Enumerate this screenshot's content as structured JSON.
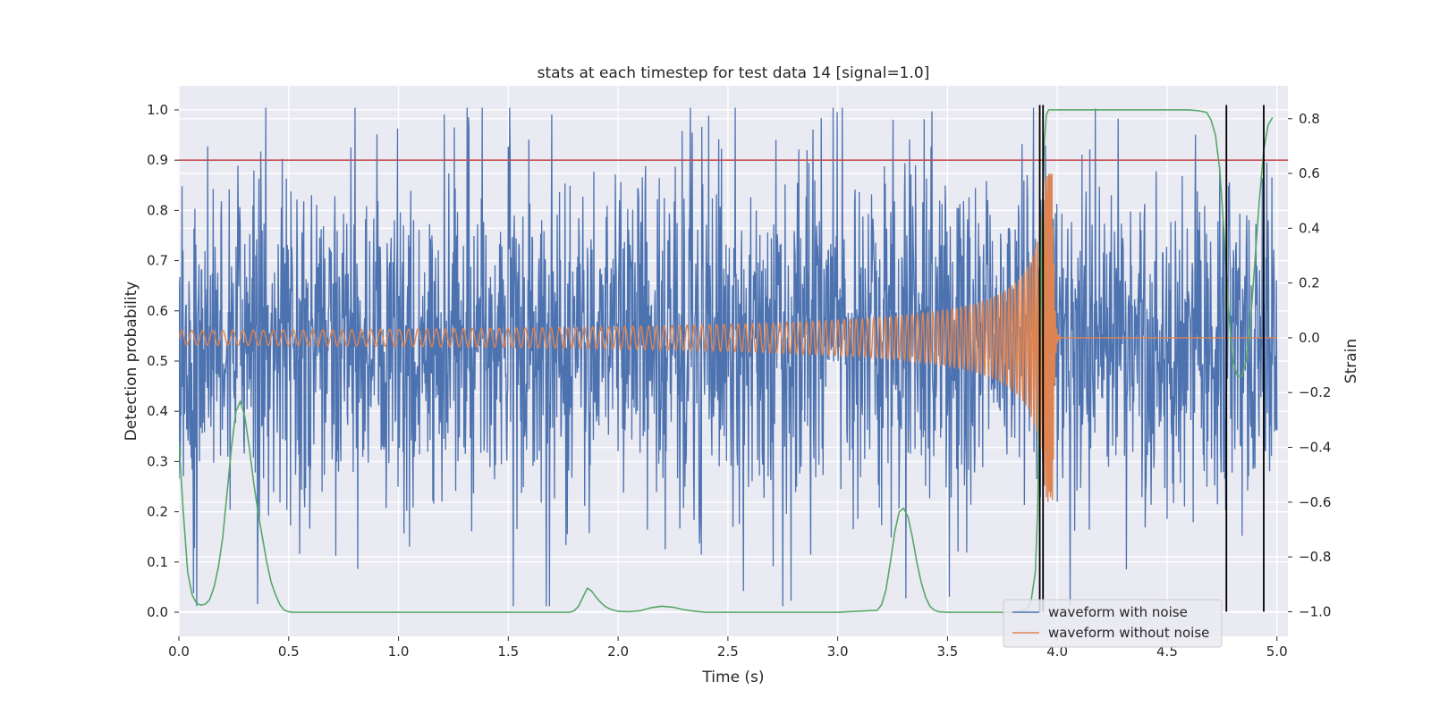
{
  "chart_data": {
    "type": "line",
    "title": "stats at each timestep for test data 14 [signal=1.0]",
    "xlabel": "Time (s)",
    "ylabel": "Detection probability",
    "y2label": "Strain",
    "xlim": [
      0.0,
      5.05
    ],
    "ylim": [
      -0.048,
      1.048
    ],
    "y2lim": [
      -1.09,
      0.92
    ],
    "x_ticks": [
      0.0,
      0.5,
      1.0,
      1.5,
      2.0,
      2.5,
      3.0,
      3.5,
      4.0,
      4.5,
      5.0
    ],
    "x_tick_labels": [
      "0.0",
      "0.5",
      "1.0",
      "1.5",
      "2.0",
      "2.5",
      "3.0",
      "3.5",
      "4.0",
      "4.5",
      "5.0"
    ],
    "y_ticks": [
      0.0,
      0.1,
      0.2,
      0.3,
      0.4,
      0.5,
      0.6,
      0.7,
      0.8,
      0.9,
      1.0
    ],
    "y_tick_labels": [
      "0.0",
      "0.1",
      "0.2",
      "0.3",
      "0.4",
      "0.5",
      "0.6",
      "0.7",
      "0.8",
      "0.9",
      "1.0"
    ],
    "y2_ticks": [
      0.8,
      0.6,
      0.4,
      0.2,
      0.0,
      -0.2,
      -0.4,
      -0.6,
      -0.8,
      -1.0
    ],
    "y2_tick_labels": [
      "0.8",
      "0.6",
      "0.4",
      "0.2",
      "0.0",
      "−0.2",
      "−0.4",
      "−0.6",
      "−0.8",
      "−1.0"
    ],
    "grid": true,
    "legend_position": "bottom-right",
    "threshold": {
      "y": 0.9,
      "color": "#c44e52"
    },
    "detection_markers": {
      "color": "#000000",
      "segments": [
        {
          "x": 3.92,
          "y2_range": [
            -1.0,
            0.85
          ]
        },
        {
          "x": 3.935,
          "y2_range": [
            -1.0,
            0.85
          ]
        },
        {
          "x": 4.77,
          "y2_range": [
            -1.0,
            0.85
          ]
        },
        {
          "x": 4.94,
          "y2_range": [
            -1.0,
            0.85
          ]
        }
      ]
    },
    "series": [
      {
        "name": "waveform with noise",
        "axis": "right",
        "color": "#4c72b0",
        "style": "noise",
        "amplitude_envelope": 0.32,
        "x_range": [
          0.0,
          5.0
        ]
      },
      {
        "name": "waveform without noise",
        "axis": "right",
        "color": "#dd8452",
        "style": "chirp",
        "merger_time": 3.98,
        "peak": 0.6,
        "x_range": [
          0.0,
          5.0
        ]
      },
      {
        "axis": "left",
        "color": "#55a868",
        "x": [
          0.0,
          0.02,
          0.04,
          0.06,
          0.08,
          0.1,
          0.12,
          0.14,
          0.16,
          0.18,
          0.2,
          0.22,
          0.24,
          0.26,
          0.28,
          0.3,
          0.32,
          0.34,
          0.36,
          0.38,
          0.4,
          0.42,
          0.44,
          0.46,
          0.48,
          0.5,
          0.52,
          0.54,
          0.56,
          0.58,
          0.6,
          1.0,
          1.5,
          1.78,
          1.8,
          1.82,
          1.84,
          1.86,
          1.88,
          1.9,
          1.92,
          1.94,
          1.96,
          1.98,
          2.0,
          2.05,
          2.1,
          2.15,
          2.2,
          2.25,
          2.3,
          2.35,
          2.4,
          3.0,
          3.18,
          3.2,
          3.22,
          3.24,
          3.26,
          3.28,
          3.3,
          3.32,
          3.34,
          3.36,
          3.38,
          3.4,
          3.42,
          3.44,
          3.46,
          3.5,
          3.6,
          3.8,
          3.86,
          3.88,
          3.9,
          3.91,
          3.92,
          3.93,
          3.94,
          3.95,
          3.96,
          4.1,
          4.4,
          4.6,
          4.65,
          4.68,
          4.7,
          4.72,
          4.74,
          4.76,
          4.78,
          4.8,
          4.82,
          4.84,
          4.86,
          4.88,
          4.9,
          4.92,
          4.94,
          4.96,
          4.98
        ],
        "y": [
          0.34,
          0.2,
          0.08,
          0.035,
          0.018,
          0.014,
          0.016,
          0.025,
          0.05,
          0.09,
          0.15,
          0.24,
          0.33,
          0.4,
          0.42,
          0.39,
          0.33,
          0.26,
          0.2,
          0.15,
          0.1,
          0.06,
          0.035,
          0.015,
          0.004,
          0.001,
          0.0,
          0.0,
          0.0,
          0.0,
          0.0,
          0.0,
          0.0,
          0.0,
          0.003,
          0.012,
          0.03,
          0.048,
          0.042,
          0.03,
          0.02,
          0.012,
          0.007,
          0.004,
          0.002,
          0.001,
          0.003,
          0.009,
          0.012,
          0.01,
          0.005,
          0.002,
          0.0,
          0.0,
          0.004,
          0.015,
          0.045,
          0.1,
          0.16,
          0.2,
          0.207,
          0.19,
          0.15,
          0.1,
          0.06,
          0.03,
          0.012,
          0.004,
          0.001,
          0.0,
          0.0,
          0.0,
          0.005,
          0.02,
          0.08,
          0.2,
          0.45,
          0.75,
          0.93,
          0.99,
          1.0,
          1.0,
          1.0,
          1.0,
          0.998,
          0.995,
          0.98,
          0.95,
          0.88,
          0.75,
          0.6,
          0.5,
          0.47,
          0.47,
          0.5,
          0.58,
          0.7,
          0.82,
          0.92,
          0.97,
          0.985
        ]
      }
    ]
  }
}
